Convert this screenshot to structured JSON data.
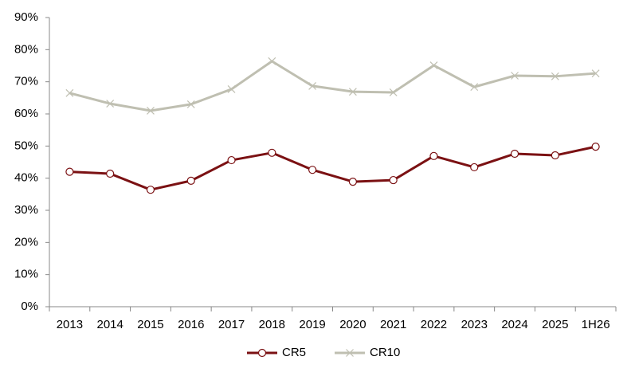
{
  "chart_data": {
    "type": "line",
    "categories": [
      "2013",
      "2014",
      "2015",
      "2016",
      "2017",
      "2018",
      "2019",
      "2020",
      "2021",
      "2022",
      "2023",
      "2024",
      "2025",
      "1H26"
    ],
    "series": [
      {
        "name": "CR5",
        "color": "#7b1113",
        "marker": "circle",
        "values": [
          42,
          41.4,
          36.4,
          39.2,
          45.6,
          47.9,
          42.6,
          38.9,
          39.4,
          46.9,
          43.4,
          47.6,
          47.1,
          49.8
        ]
      },
      {
        "name": "CR10",
        "color": "#bfbfb1",
        "marker": "x",
        "values": [
          66.5,
          63.2,
          61,
          63,
          67.7,
          76.4,
          68.7,
          66.9,
          66.7,
          75.1,
          68.4,
          71.9,
          71.7,
          72.6
        ]
      }
    ],
    "ylim": [
      0,
      90
    ],
    "yticks": [
      {
        "value": 0,
        "label": "0%"
      },
      {
        "value": 10,
        "label": "10%"
      },
      {
        "value": 20,
        "label": "20%"
      },
      {
        "value": 30,
        "label": "30%"
      },
      {
        "value": 40,
        "label": "40%"
      },
      {
        "value": 50,
        "label": "50%"
      },
      {
        "value": 60,
        "label": "60%"
      },
      {
        "value": 70,
        "label": "70%"
      },
      {
        "value": 80,
        "label": "80%"
      },
      {
        "value": 90,
        "label": "90%"
      }
    ],
    "grid": false,
    "legend": "bottom"
  }
}
